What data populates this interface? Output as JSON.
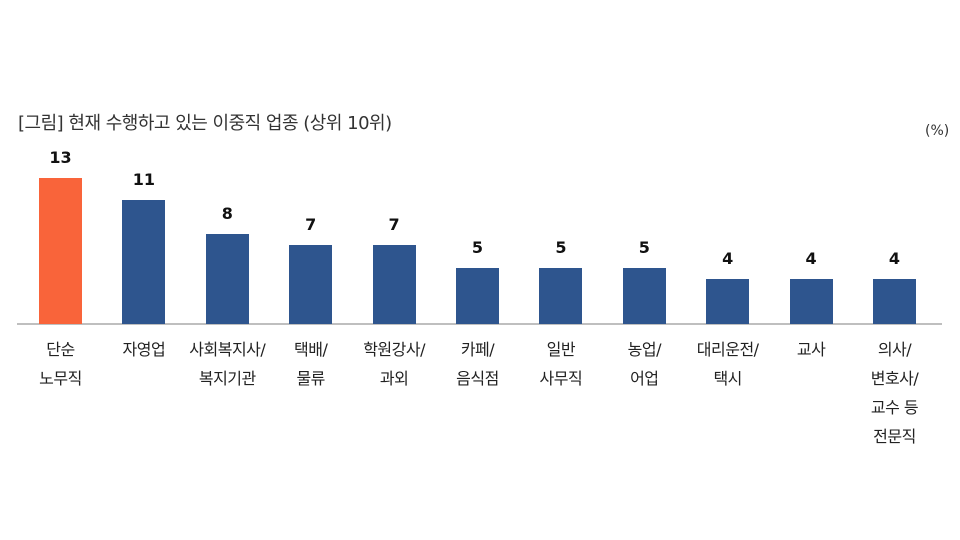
{
  "title": "[그림] 현재 수행하고 있는 이중직 업종 (상위 10위)",
  "unit": "(%)",
  "colors": {
    "highlight": "#F9643A",
    "default": "#2E558E",
    "axis": "#BFBFBF"
  },
  "chart_data": {
    "type": "bar",
    "title": "[그림] 현재 수행하고 있는 이중직 업종 (상위 10위)",
    "xlabel": "",
    "ylabel": "(%)",
    "ylim": [
      0,
      13
    ],
    "grid": false,
    "legend": "none",
    "categories": [
      "단순 노무직",
      "자영업",
      "사회복지사/ 복지기관",
      "택배/ 물류",
      "학원강사/ 과외",
      "카페/ 음식점",
      "일반 사무직",
      "농업/ 어업",
      "대리운전/ 택시",
      "교사",
      "의사/ 변호사/ 교수 등 전문직"
    ],
    "values": [
      13,
      11,
      8,
      7,
      7,
      5,
      5,
      5,
      4,
      4,
      4
    ]
  },
  "bars": [
    {
      "value": "13",
      "label_lines": [
        "단순",
        "노무직"
      ],
      "highlight": true
    },
    {
      "value": "11",
      "label_lines": [
        "자영업"
      ]
    },
    {
      "value": "8",
      "label_lines": [
        "사회복지사/",
        "복지기관"
      ]
    },
    {
      "value": "7",
      "label_lines": [
        "택배/",
        "물류"
      ]
    },
    {
      "value": "7",
      "label_lines": [
        "학원강사/",
        "과외"
      ]
    },
    {
      "value": "5",
      "label_lines": [
        "카페/",
        "음식점"
      ]
    },
    {
      "value": "5",
      "label_lines": [
        "일반",
        "사무직"
      ]
    },
    {
      "value": "5",
      "label_lines": [
        "농업/",
        "어업"
      ]
    },
    {
      "value": "4",
      "label_lines": [
        "대리운전/",
        "택시"
      ]
    },
    {
      "value": "4",
      "label_lines": [
        "교사"
      ]
    },
    {
      "value": "4",
      "label_lines": [
        "의사/",
        "변호사/",
        "교수 등",
        "전문직"
      ]
    }
  ]
}
